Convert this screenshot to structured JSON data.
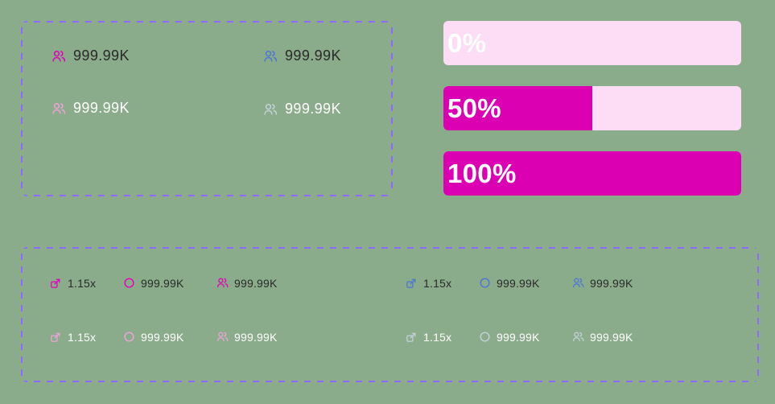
{
  "colors": {
    "background": "#8aac8a",
    "panel_border": "#8f68ff",
    "accent_pink": "#e100b9",
    "accent_blue": "#4b75d6",
    "accent_light_pink": "#efa3d9",
    "accent_light_gray": "#c5d1db",
    "progress_fill": "#dc00b3",
    "progress_track": "#fddcf6",
    "dark_text": "#2a2a2a",
    "light_text": "#ffffff"
  },
  "top_panel": {
    "stats": [
      {
        "icon": "users-icon",
        "value": "999.99K",
        "color": "#e100b9",
        "text_color": "#2a2a2a"
      },
      {
        "icon": "users-icon",
        "value": "999.99K",
        "color": "#4b75d6",
        "text_color": "#2a2a2a"
      },
      {
        "icon": "users-icon",
        "value": "999.99K",
        "color": "#efa3d9",
        "text_color": "#ffffff"
      },
      {
        "icon": "users-icon",
        "value": "999.99K",
        "color": "#c5d1db",
        "text_color": "#ffffff"
      }
    ]
  },
  "progress_bars": [
    {
      "label": "0%",
      "percent": 0
    },
    {
      "label": "50%",
      "percent": 50
    },
    {
      "label": "100%",
      "percent": 100
    }
  ],
  "bottom_panel": {
    "left_group": [
      [
        {
          "icon": "share-box-icon",
          "value": "1.15x",
          "color": "#e100b9",
          "text_color": "#2a2a2a"
        },
        {
          "icon": "circle-icon",
          "value": "999.99K",
          "color": "#e100b9",
          "text_color": "#2a2a2a"
        },
        {
          "icon": "users-icon",
          "value": "999.99K",
          "color": "#e100b9",
          "text_color": "#2a2a2a"
        }
      ],
      [
        {
          "icon": "share-box-icon",
          "value": "1.15x",
          "color": "#efa3d9",
          "text_color": "#ffffff"
        },
        {
          "icon": "circle-icon",
          "value": "999.99K",
          "color": "#efa3d9",
          "text_color": "#ffffff"
        },
        {
          "icon": "users-icon",
          "value": "999.99K",
          "color": "#efa3d9",
          "text_color": "#ffffff"
        }
      ]
    ],
    "right_group": [
      [
        {
          "icon": "share-box-icon",
          "value": "1.15x",
          "color": "#4b75d6",
          "text_color": "#2a2a2a"
        },
        {
          "icon": "circle-icon",
          "value": "999.99K",
          "color": "#4b75d6",
          "text_color": "#2a2a2a"
        },
        {
          "icon": "users-icon",
          "value": "999.99K",
          "color": "#4b75d6",
          "text_color": "#2a2a2a"
        }
      ],
      [
        {
          "icon": "share-box-icon",
          "value": "1.15x",
          "color": "#c5d1db",
          "text_color": "#ffffff"
        },
        {
          "icon": "circle-icon",
          "value": "999.99K",
          "color": "#c5d1db",
          "text_color": "#ffffff"
        },
        {
          "icon": "users-icon",
          "value": "999.99K",
          "color": "#c5d1db",
          "text_color": "#ffffff"
        }
      ]
    ]
  }
}
